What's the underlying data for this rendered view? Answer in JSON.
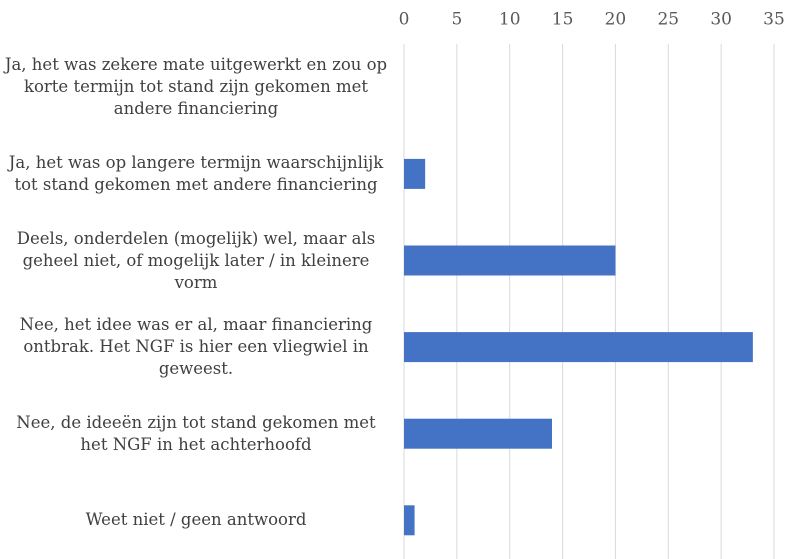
{
  "chart_data": {
    "type": "barh",
    "categories": [
      "Ja, het was zekere mate uitgewerkt en zou op korte termijn tot stand  zijn gekomen met andere financiering",
      "Ja, het was op langere termijn waarschijnlijk tot stand gekomen met andere financiering",
      "Deels, onderdelen (mogelijk) wel, maar als geheel niet, of mogelijk later / in kleinere vorm",
      "Nee, het idee was er al, maar financiering ontbrak. Het NGF is hier een vliegwiel in geweest.",
      "Nee, de ideeën zijn tot stand gekomen met het NGF in het achterhoofd",
      "Weet niet / geen antwoord"
    ],
    "values": [
      0,
      2,
      20,
      33,
      14,
      1
    ],
    "color": "#4472c4",
    "xlim": [
      0,
      35
    ],
    "xticks": [
      0,
      5,
      10,
      15,
      20,
      25,
      30,
      35
    ],
    "grid": true
  }
}
